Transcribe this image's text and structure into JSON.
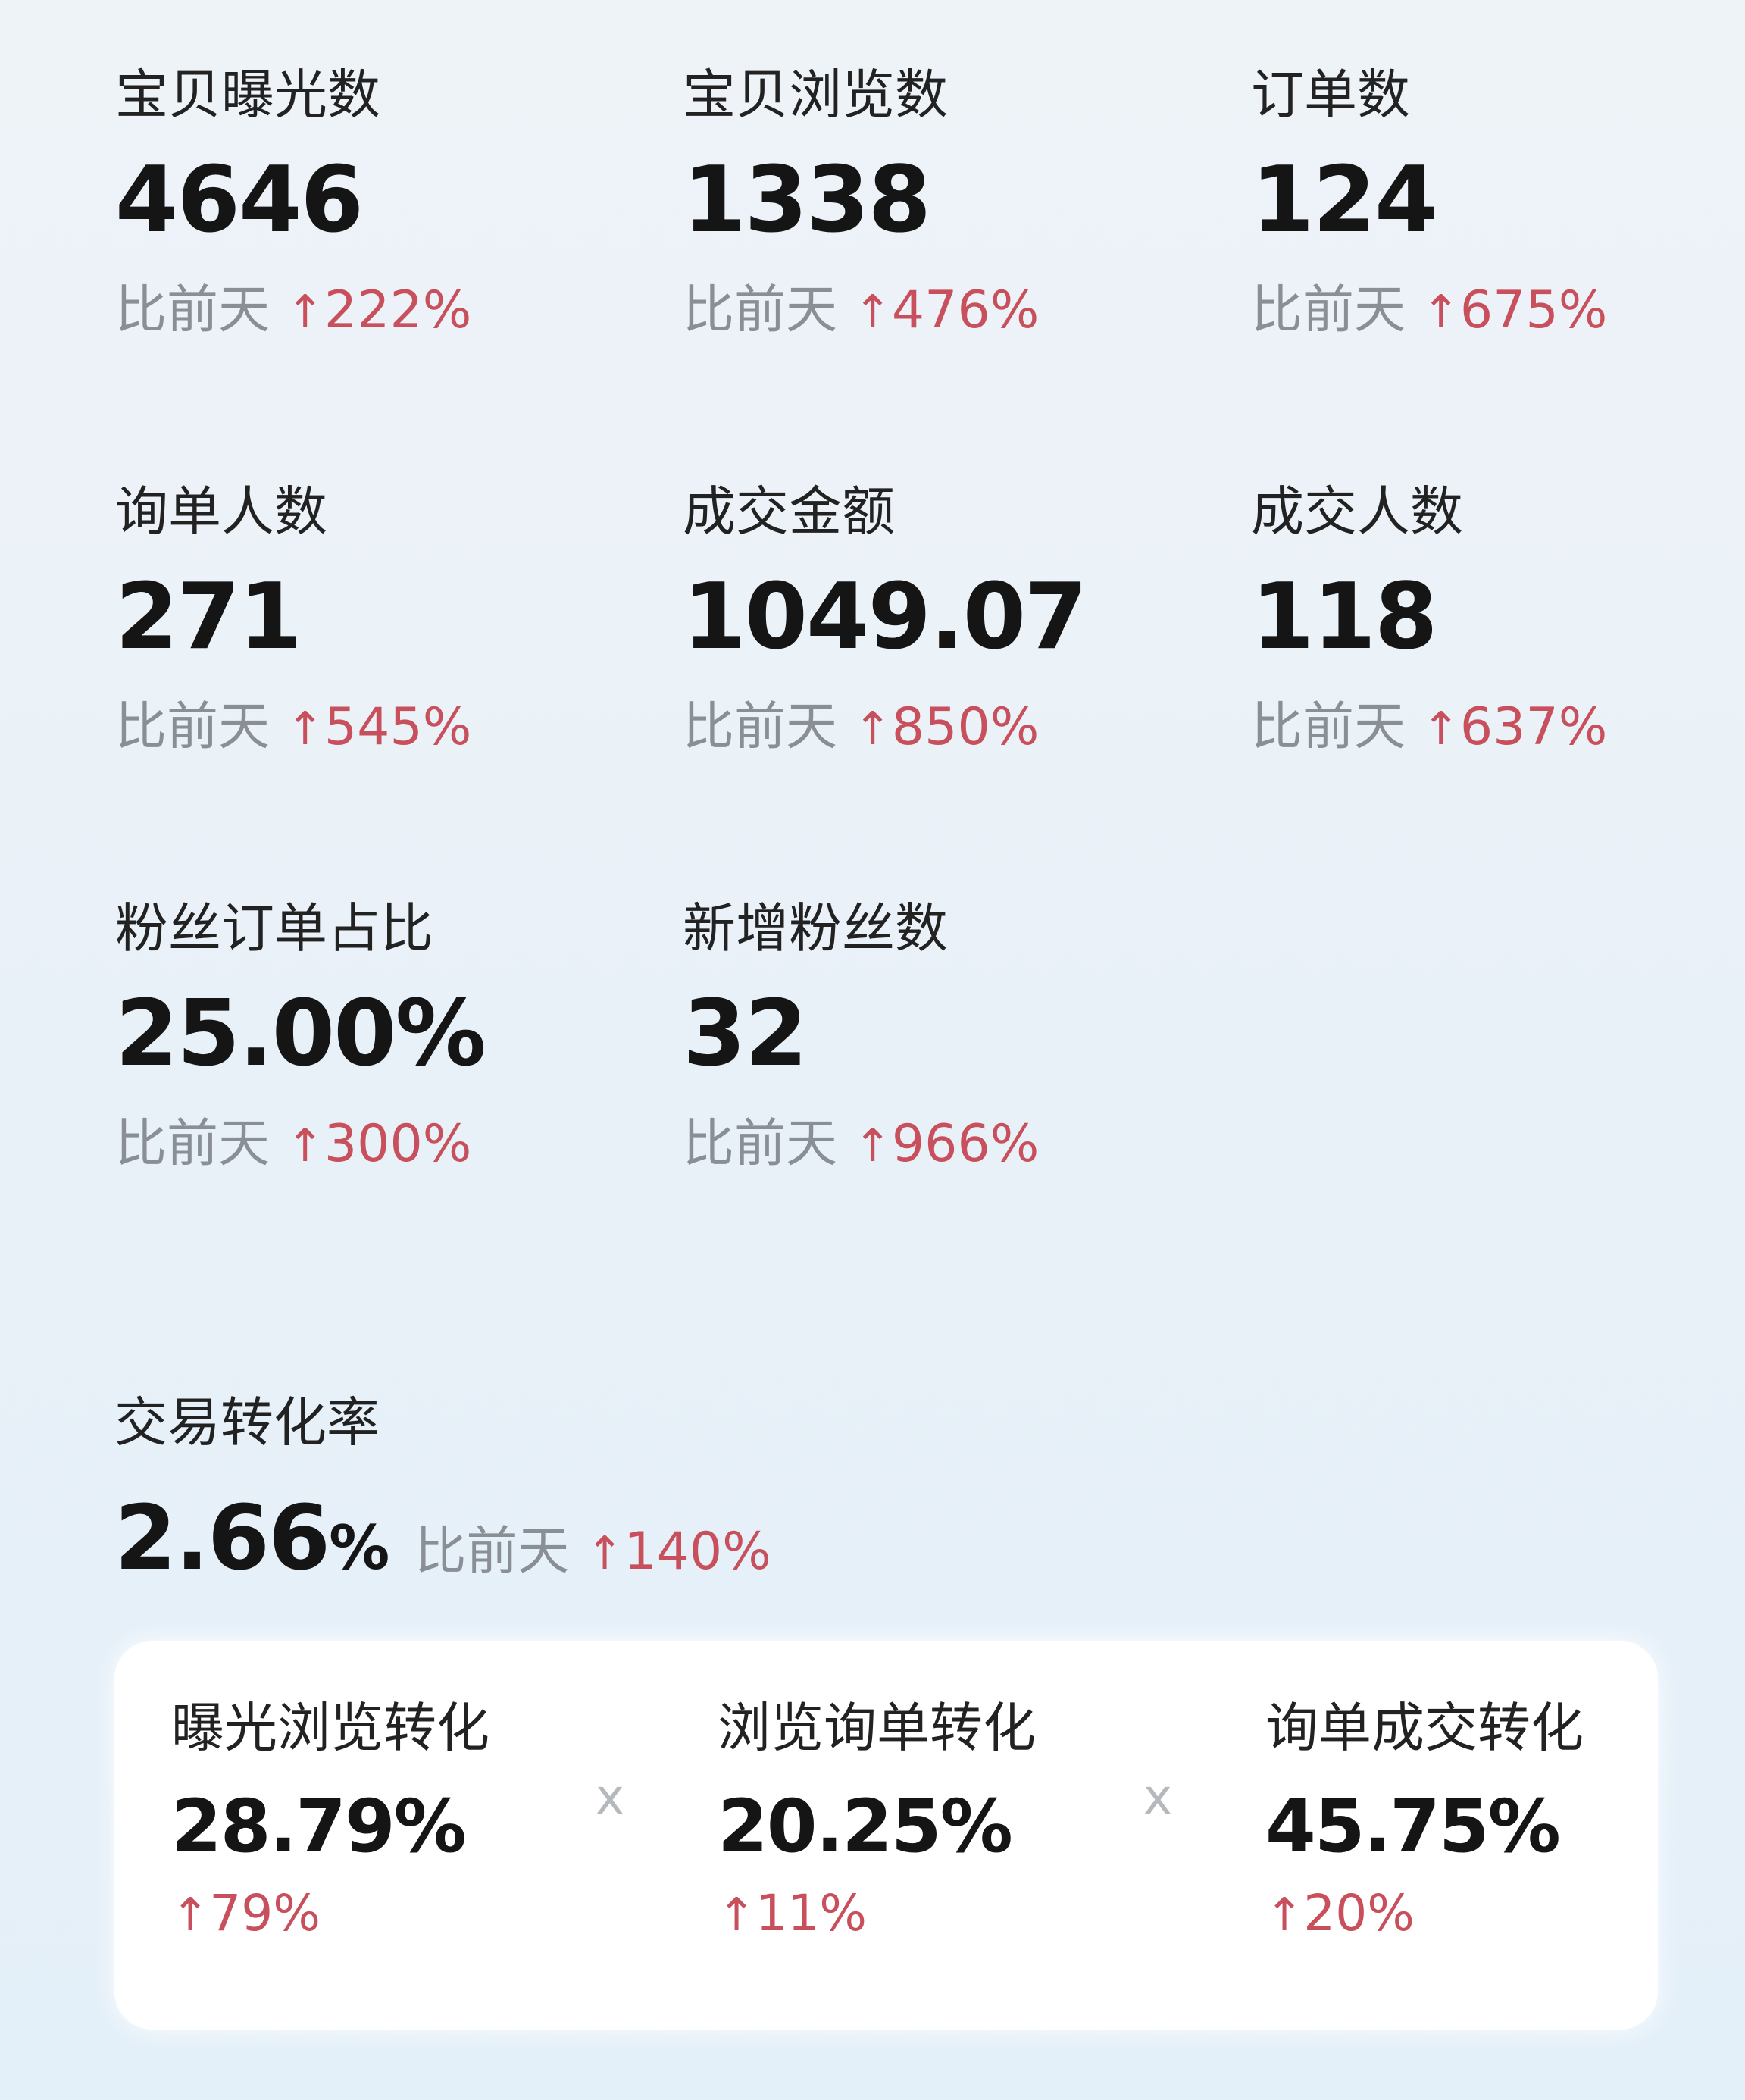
{
  "compare_label": "比前天",
  "up_icon": "arrow-up-icon",
  "colors": {
    "up": "#c8505c",
    "muted": "#8a8f96",
    "text": "#151515"
  },
  "metrics": [
    {
      "label": "宝贝曝光数",
      "value": "4646",
      "change": "222%"
    },
    {
      "label": "宝贝浏览数",
      "value": "1338",
      "change": "476%"
    },
    {
      "label": "订单数",
      "value": "124",
      "change": "675%"
    },
    {
      "label": "询单人数",
      "value": "271",
      "change": "545%"
    },
    {
      "label": "成交金额",
      "value": "1049.07",
      "change": "850%"
    },
    {
      "label": "成交人数",
      "value": "118",
      "change": "637%"
    },
    {
      "label": "粉丝订单占比",
      "value": "25.00%",
      "change": "300%"
    },
    {
      "label": "新增粉丝数",
      "value": "32",
      "change": "966%"
    }
  ],
  "conversion": {
    "label": "交易转化率",
    "value": "2.66",
    "unit": "%",
    "change": "140%",
    "separator": "x",
    "steps": [
      {
        "label": "曝光浏览转化",
        "value": "28.79%",
        "change": "79%"
      },
      {
        "label": "浏览询单转化",
        "value": "20.25%",
        "change": "11%"
      },
      {
        "label": "询单成交转化",
        "value": "45.75%",
        "change": "20%"
      }
    ]
  }
}
